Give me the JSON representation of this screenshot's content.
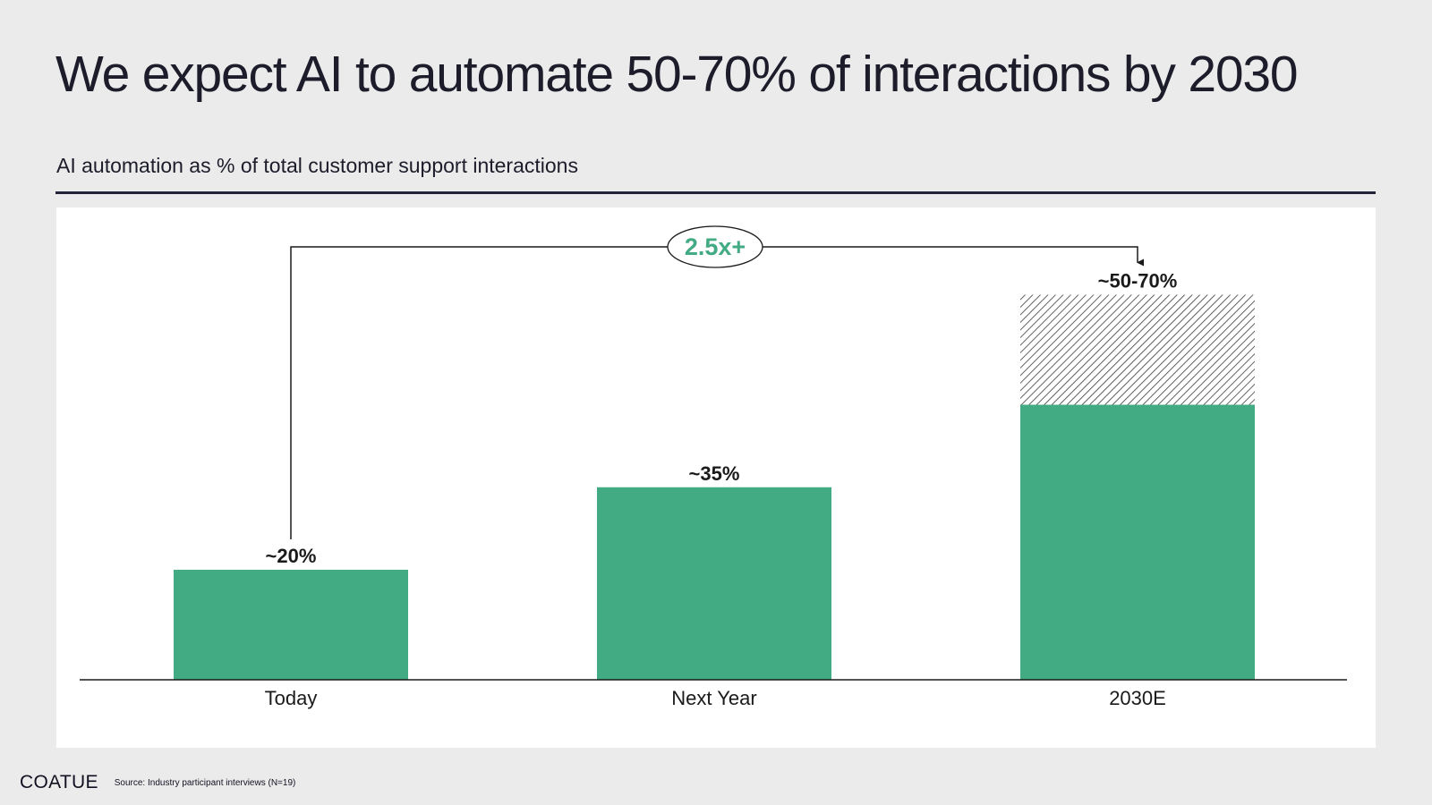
{
  "headline": "We expect AI to automate 50-70% of interactions by 2030",
  "subtitle": "AI automation as % of total customer support interactions",
  "footer": {
    "logo": "COATUE",
    "source": "Source: Industry participant interviews (N=19)"
  },
  "colors": {
    "bar": "#42ab83",
    "growth_label": "#42ab83",
    "text": "#1c1c2b",
    "background": "#ebebeb"
  },
  "chart_data": {
    "type": "bar",
    "title": "",
    "xlabel": "",
    "ylabel": "",
    "ylim": [
      0,
      80
    ],
    "grid": false,
    "categories": [
      "Today",
      "Next Year",
      "2030E"
    ],
    "series": [
      {
        "values": [
          20,
          35,
          50
        ]
      },
      {
        "values": [
          0,
          0,
          20
        ],
        "pattern": "hatched"
      }
    ],
    "data_labels": [
      "~20%",
      "~35%",
      "~50-70%"
    ],
    "annotation": {
      "text": "2.5x+",
      "from": "Today",
      "to": "2030E"
    }
  }
}
